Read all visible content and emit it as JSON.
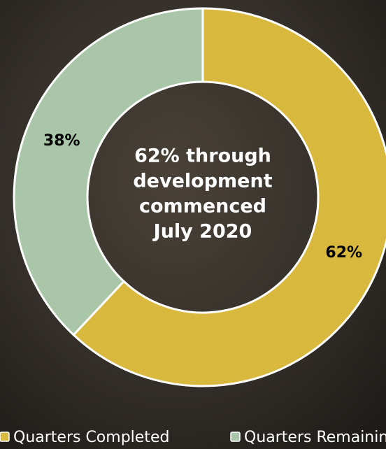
{
  "chart_data": {
    "type": "donut",
    "categories": [
      "Quarters Completed",
      "Quarters Remaining"
    ],
    "values": [
      62,
      38
    ],
    "value_labels": [
      "62%",
      "38%"
    ],
    "colors": [
      "#d9b83e",
      "#a9c7a8"
    ],
    "center_text": [
      "62% through",
      "development",
      "commenced",
      "July 2020"
    ]
  }
}
